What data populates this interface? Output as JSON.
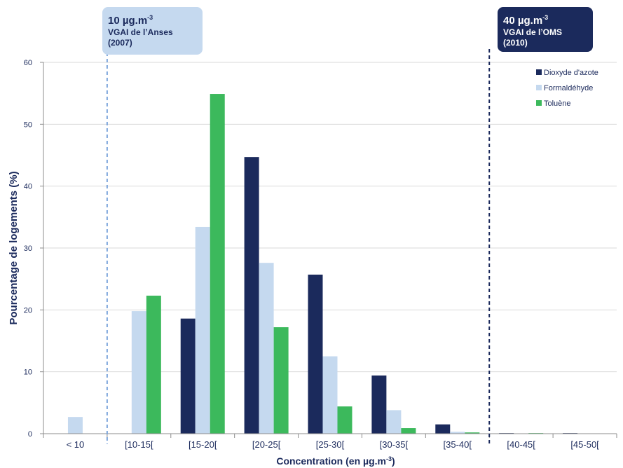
{
  "chart_data": {
    "type": "bar",
    "xlabel": "Concentration (en µg.m",
    "xlabel_exp": "-3",
    "xlabel_end": ")",
    "ylabel": "Pourcentage de logements (%)",
    "ylim": [
      0,
      60
    ],
    "yticks": [
      0,
      10,
      20,
      30,
      40,
      50,
      60
    ],
    "grid": true,
    "legend_position": "top-right",
    "categories": [
      "< 10",
      "[10-15[",
      "[15-20[",
      "[20-25[",
      "[25-30[",
      "[30-35[",
      "[35-40[",
      "[40-45[",
      "[45-50["
    ],
    "series": [
      {
        "name": "Dioxyde d'azote",
        "color": "#1b2a5c",
        "values": [
          0,
          0,
          18.6,
          44.7,
          25.7,
          9.4,
          1.5,
          0.1,
          0.1
        ]
      },
      {
        "name": "Formaldéhyde",
        "color": "#c5d9ef",
        "values": [
          2.7,
          19.8,
          33.4,
          27.6,
          12.5,
          3.8,
          0.3,
          0.05,
          0
        ]
      },
      {
        "name": "Toluène",
        "color": "#3cb95c",
        "values": [
          0,
          22.3,
          54.9,
          17.2,
          4.4,
          0.9,
          0.2,
          0.1,
          0
        ]
      }
    ],
    "reference_lines": [
      {
        "value": 10,
        "color": "#7ea6dc",
        "style": "dashed"
      },
      {
        "value": 40,
        "color": "#1b2a5c",
        "style": "dashed"
      }
    ]
  },
  "callouts": {
    "anses": {
      "value": "10 µg.m",
      "exp": "-3",
      "line1": "VGAI de l’Anses",
      "line2": "(2007)"
    },
    "oms": {
      "value": "40 µg.m",
      "exp": "-3",
      "line1": "VGAI de l’OMS",
      "line2": "(2010)"
    }
  }
}
